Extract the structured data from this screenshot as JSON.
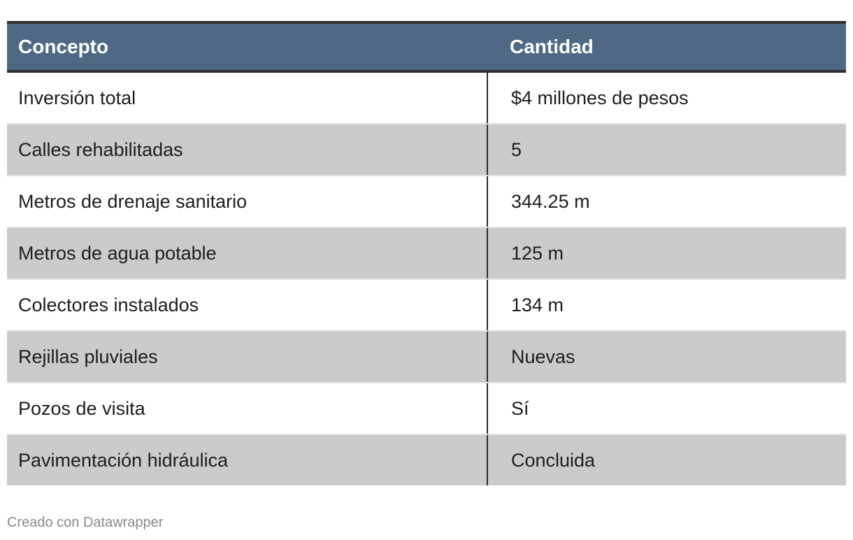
{
  "table": {
    "headers": [
      "Concepto",
      "Cantidad"
    ],
    "rows": [
      [
        "Inversión total",
        "$4 millones de pesos"
      ],
      [
        "Calles rehabilitadas",
        "5"
      ],
      [
        "Metros de drenaje sanitario",
        "344.25 m"
      ],
      [
        "Metros de agua potable",
        "125 m"
      ],
      [
        "Colectores instalados",
        "134 m"
      ],
      [
        "Rejillas pluviales",
        "Nuevas"
      ],
      [
        "Pozos de visita",
        "Sí"
      ],
      [
        "Pavimentación hidráulica",
        "Concluida"
      ]
    ]
  },
  "footer": {
    "credit": "Creado con Datawrapper"
  },
  "colors": {
    "header_background": "#4f6984",
    "header_text": "#ffffff",
    "alt_row_background": "#cbcbcb",
    "row_background": "#ffffff",
    "credit_text": "#8a8a8a"
  }
}
